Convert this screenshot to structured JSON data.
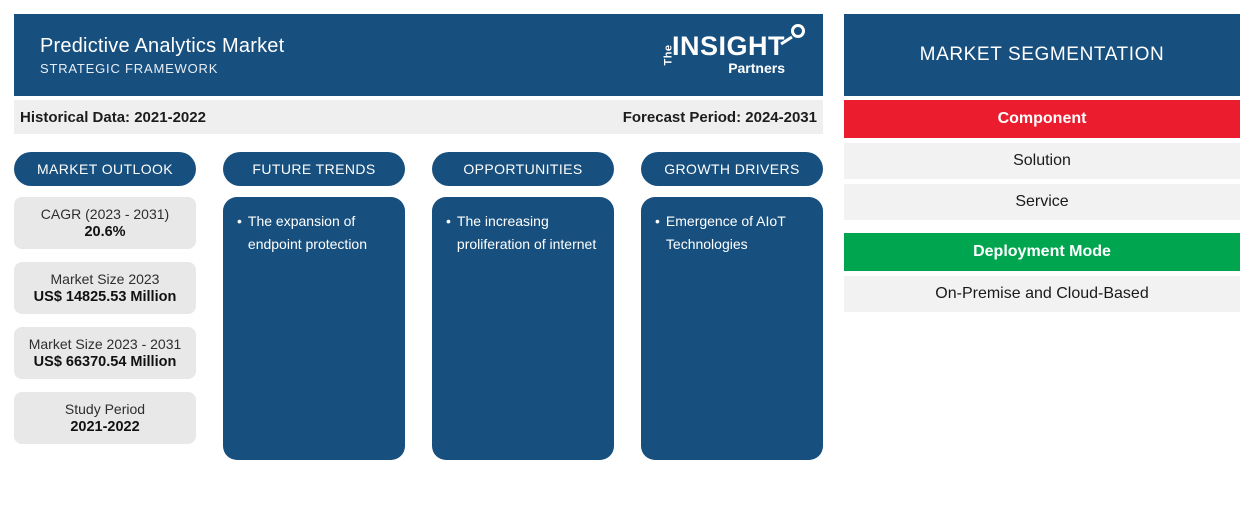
{
  "header": {
    "title": "Predictive Analytics Market",
    "subtitle": "STRATEGIC FRAMEWORK",
    "logo": {
      "the": "The",
      "insight": "INSIGHT",
      "partners": "Partners"
    }
  },
  "period_bar": {
    "historical": "Historical Data: 2021-2022",
    "forecast": "Forecast Period: 2024-2031"
  },
  "bullet_char": "•",
  "outlook": {
    "pill": "MARKET OUTLOOK",
    "stats": [
      {
        "label": "CAGR (2023 - 2031)",
        "value": "20.6%"
      },
      {
        "label": "Market Size 2023",
        "value": "US$ 14825.53 Million"
      },
      {
        "label": "Market Size 2023 - 2031",
        "value": "US$ 66370.54 Million"
      },
      {
        "label": "Study Period",
        "value": "2021-2022"
      }
    ]
  },
  "columns": [
    {
      "pill": "FUTURE TRENDS",
      "items": [
        "The expansion of endpoint protection"
      ]
    },
    {
      "pill": "OPPORTUNITIES",
      "items": [
        "The increasing proliferation of internet"
      ]
    },
    {
      "pill": "GROWTH DRIVERS",
      "items": [
        "Emergence of AIoT Technologies"
      ]
    }
  ],
  "segmentation": {
    "title": "MARKET SEGMENTATION",
    "rows": [
      {
        "label": "Component",
        "type": "category",
        "color": "#EB1C2D"
      },
      {
        "label": "Solution",
        "type": "item"
      },
      {
        "label": "Service",
        "type": "item"
      },
      {
        "label": "Deployment Mode",
        "type": "category",
        "color": "#00A64F"
      },
      {
        "label": "On-Premise and Cloud-Based",
        "type": "item"
      }
    ]
  },
  "colors": {
    "primary_blue": "#174F7E",
    "category_red": "#EB1C2D",
    "category_green": "#00A64F",
    "period_bar_gray": "#EFEFEF",
    "stat_card_gray": "#E8E8E8",
    "segment_item_gray": "#F2F2F2"
  }
}
